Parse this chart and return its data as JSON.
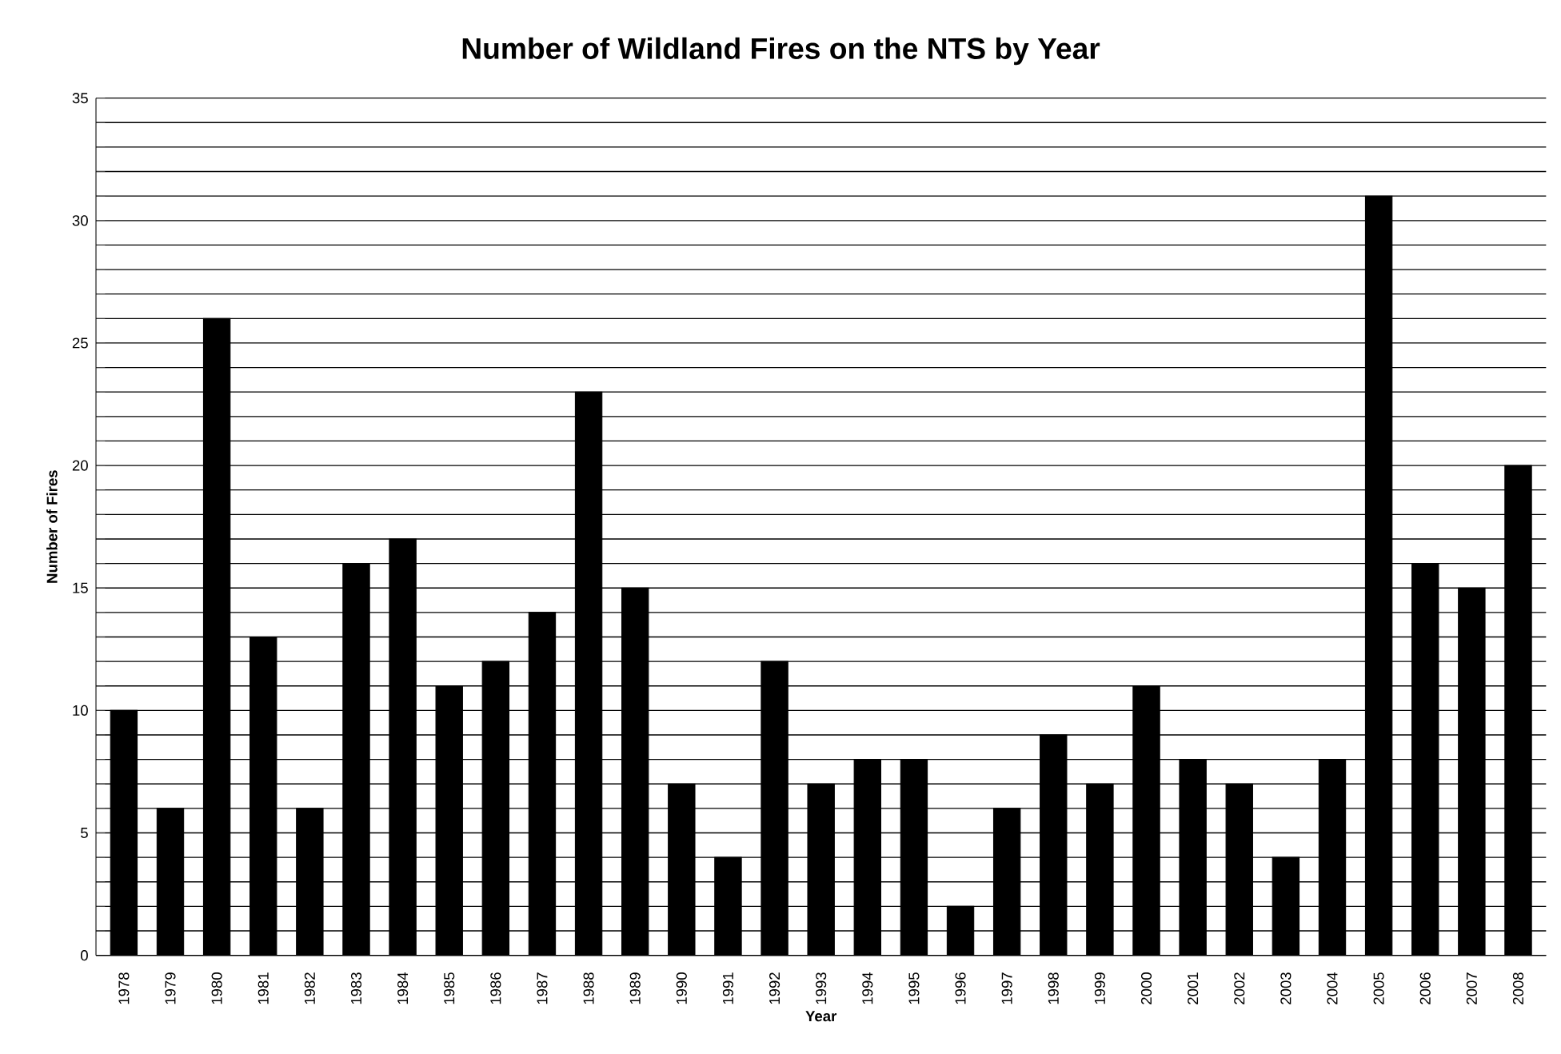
{
  "chart_data": {
    "type": "bar",
    "title": "Number of Wildland Fires on the NTS by Year",
    "xlabel": "Year",
    "ylabel": "Number of Fires",
    "categories": [
      "1978",
      "1979",
      "1980",
      "1981",
      "1982",
      "1983",
      "1984",
      "1985",
      "1986",
      "1987",
      "1988",
      "1989",
      "1990",
      "1991",
      "1992",
      "1993",
      "1994",
      "1995",
      "1996",
      "1997",
      "1998",
      "1999",
      "2000",
      "2001",
      "2002",
      "2003",
      "2004",
      "2005",
      "2006",
      "2007",
      "2008"
    ],
    "values": [
      10,
      6,
      26,
      13,
      6,
      16,
      17,
      11,
      12,
      14,
      23,
      15,
      7,
      4,
      12,
      7,
      8,
      8,
      2,
      6,
      9,
      7,
      11,
      8,
      7,
      4,
      8,
      31,
      16,
      15,
      20
    ],
    "color": "#000000",
    "ylim": [
      0,
      35
    ],
    "yticks": [
      0,
      {
        "value": 1,
        "label": null
      },
      {
        "value": 2,
        "label": null
      },
      {
        "value": 3,
        "label": null
      },
      {
        "value": 4,
        "label": null
      },
      5,
      {
        "value": 6,
        "label": null
      },
      {
        "value": 7,
        "label": null
      },
      {
        "value": 8,
        "label": null
      },
      {
        "value": 9,
        "label": null
      },
      10,
      {
        "value": 11,
        "label": null
      },
      {
        "value": 12,
        "label": null
      },
      {
        "value": 13,
        "label": null
      },
      {
        "value": 14,
        "label": null
      },
      15,
      {
        "value": 16,
        "label": null
      },
      {
        "value": 17,
        "label": null
      },
      {
        "value": 18,
        "label": null
      },
      {
        "value": 19,
        "label": null
      },
      20,
      {
        "value": 21,
        "label": null
      },
      {
        "value": 22,
        "label": null
      },
      {
        "value": 23,
        "label": null
      },
      {
        "value": 24,
        "label": null
      },
      25,
      {
        "value": 26,
        "label": null
      },
      {
        "value": 27,
        "label": null
      },
      {
        "value": 28,
        "label": null
      },
      {
        "value": 29,
        "label": null
      },
      30,
      {
        "value": 31,
        "label": null
      },
      {
        "value": 32,
        "label": null
      },
      {
        "value": 33,
        "label": null
      },
      {
        "value": 34,
        "label": null
      },
      35
    ],
    "grid": "y"
  }
}
